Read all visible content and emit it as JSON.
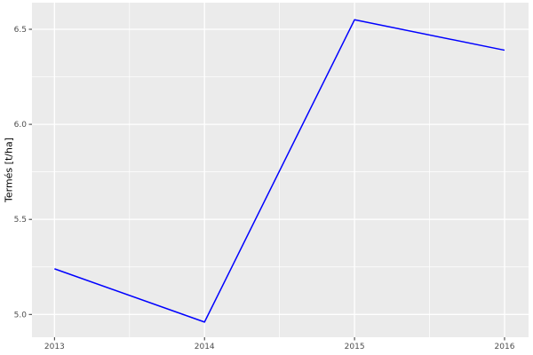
{
  "chart_data": {
    "type": "line",
    "title": "",
    "xlabel": "",
    "ylabel": "Termés [t/ha]",
    "x": [
      2013,
      2014,
      2015,
      2016
    ],
    "series": [
      {
        "name": "Termés",
        "values": [
          5.24,
          4.96,
          6.55,
          6.39
        ],
        "color": "#0000FF"
      }
    ],
    "x_tick_values": [
      2013,
      2014,
      2015,
      2016
    ],
    "x_tick_labels": [
      "2013",
      "2014",
      "2015",
      "2016"
    ],
    "y_tick_values": [
      5.0,
      5.5,
      6.0,
      6.5
    ],
    "y_tick_labels": [
      "5.0",
      "5.5",
      "6.0",
      "6.5"
    ],
    "x_minor_gridlines": [
      2013.5,
      2014.5,
      2015.5
    ],
    "y_minor_gridlines": [
      5.25,
      5.75,
      6.25
    ],
    "xlim": [
      2012.85,
      2016.16
    ],
    "ylim": [
      4.88,
      6.64
    ],
    "grid": true,
    "legend_position": "none",
    "style": "ggplot2",
    "colors": {
      "line": "#0000FF",
      "panel_background": "#EBEBEB",
      "gridline_major": "#FFFFFF",
      "gridline_minor": "#FFFFFF",
      "tick_label": "#4D4D4D",
      "tick_mark": "#333333",
      "axis_title": "#000000",
      "outer_background": "#FFFFFF"
    }
  }
}
